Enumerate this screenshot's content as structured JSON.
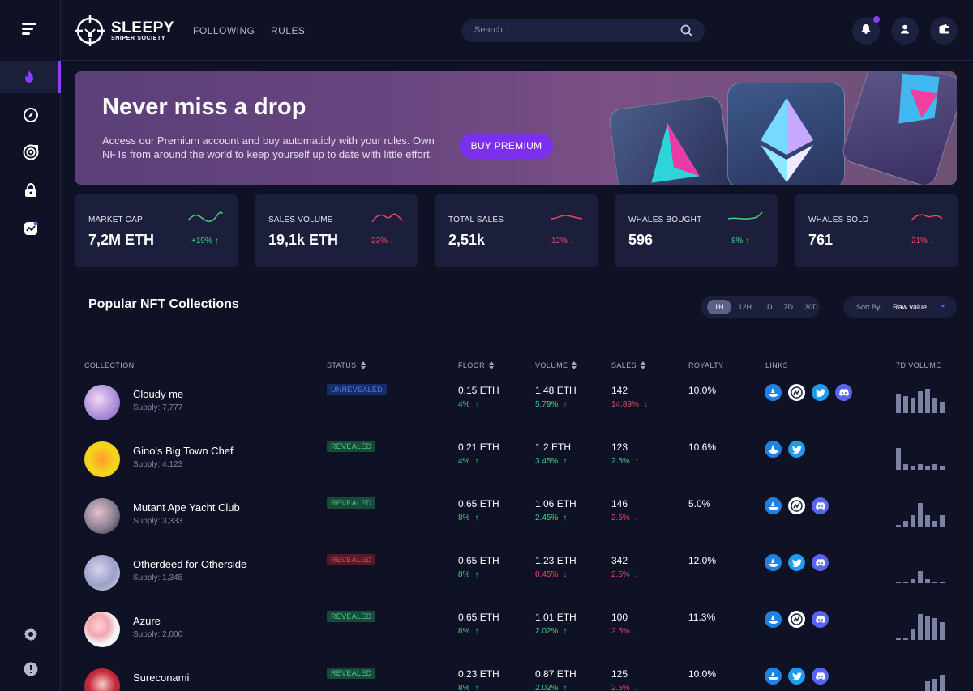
{
  "brand": {
    "title": "SLEEPY",
    "subtitle": "SNIPER SOCIETY"
  },
  "nav": [
    {
      "label": "FOLLOWING"
    },
    {
      "label": "RULES"
    }
  ],
  "search": {
    "placeholder": "Search..."
  },
  "colors": {
    "accent": "#8a3ff7",
    "up": "#3fcf7f",
    "down": "#e8475f",
    "background": "#0f1225",
    "card": "#1b1f3b"
  },
  "banner": {
    "title": "Never miss a drop",
    "text": "Access our Premium account and buy automaticly with your rules. Own NFTs from around the world to keep yourself up to date with little effort.",
    "button": "BUY PREMIUM"
  },
  "stats": [
    {
      "label": "MARKET CAP",
      "value": "7,2M ETH",
      "change": "+19%",
      "direction": "up"
    },
    {
      "label": "SALES VOLUME",
      "value": "19,1k ETH",
      "change": "23%",
      "direction": "down"
    },
    {
      "label": "TOTAL SALES",
      "value": "2,51k",
      "change": "12%",
      "direction": "down"
    },
    {
      "label": "WHALES BOUGHT",
      "value": "596",
      "change": "8%",
      "direction": "up"
    },
    {
      "label": "WHALES SOLD",
      "value": "761",
      "change": "21%",
      "direction": "down"
    }
  ],
  "section": {
    "title": "Popular NFT Collections"
  },
  "periods": [
    {
      "label": "1H",
      "active": true
    },
    {
      "label": "12H"
    },
    {
      "label": "1D"
    },
    {
      "label": "7D"
    },
    {
      "label": "30D"
    }
  ],
  "sort": {
    "label": "Sort By",
    "value": "Raw value"
  },
  "table": {
    "headers": {
      "collection": "COLLECTION",
      "status": "STATUS",
      "floor": "FLOOR",
      "volume": "VOLUME",
      "sales": "SALES",
      "royalty": "ROYALTY",
      "links": "LINKS",
      "volume7d": "7D VOLUME"
    },
    "rows": [
      {
        "name": "Cloudy me",
        "supply": "Supply: 7,777",
        "status": "UNREVEALED",
        "status_kind": "unrevealed",
        "floor": "0.15 ETH",
        "floor_change": "4%",
        "floor_dir": "up",
        "volume": "1.48 ETH",
        "volume_change": "5.79%",
        "volume_dir": "up",
        "sales": "142",
        "sales_change": "14.89%",
        "sales_dir": "down",
        "royalty": "10.0%",
        "links": [
          "opensea-icon",
          "looksrare-icon",
          "twitter-icon",
          "discord-icon"
        ],
        "volume7d": [
          0.72,
          0.62,
          0.56,
          0.78,
          0.88,
          0.56,
          0.4
        ]
      },
      {
        "name": "Gino's Big Town Chef",
        "supply": "Supply: 4,123",
        "status": "REVEALED",
        "status_kind": "revealed",
        "floor": "0.21 ETH",
        "floor_change": "4%",
        "floor_dir": "up",
        "volume": "1.2 ETH",
        "volume_change": "3.45%",
        "volume_dir": "up",
        "sales": "123",
        "sales_change": "2.5%",
        "sales_dir": "up",
        "royalty": "10.6%",
        "links": [
          "opensea-icon",
          "twitter-icon"
        ],
        "volume7d": [
          0.78,
          0.22,
          0.16,
          0.22,
          0.16,
          0.22,
          0.16
        ]
      },
      {
        "name": "Mutant Ape Yacht Club",
        "supply": "Supply: 3,333",
        "status": "REVEALED",
        "status_kind": "revealed",
        "floor": "0.65 ETH",
        "floor_change": "8%",
        "floor_dir": "up",
        "volume": "1.06 ETH",
        "volume_change": "2.45%",
        "volume_dir": "up",
        "sales": "146",
        "sales_change": "2.5%",
        "sales_dir": "down",
        "royalty": "5.0%",
        "links": [
          "opensea-icon",
          "looksrare-icon",
          "discord-icon"
        ],
        "volume7d": [
          0.06,
          0.22,
          0.4,
          0.84,
          0.4,
          0.22,
          0.4
        ]
      },
      {
        "name": "Otherdeed for Otherside",
        "supply": "Supply: 1,345",
        "status": "REVEALED",
        "status_kind": "red",
        "floor": "0.65 ETH",
        "floor_change": "8%",
        "floor_dir": "up",
        "volume": "1.23 ETH",
        "volume_change": "0.45%",
        "volume_dir": "down",
        "sales": "342",
        "sales_change": "2.5%",
        "sales_dir": "down",
        "royalty": "12.0%",
        "links": [
          "opensea-icon",
          "twitter-icon",
          "discord-icon"
        ],
        "volume7d": [
          0.06,
          0.06,
          0.16,
          0.44,
          0.16,
          0.06,
          0.06
        ]
      },
      {
        "name": "Azure",
        "supply": "Supply: 2,000",
        "status": "REVEALED",
        "status_kind": "revealed",
        "floor": "0.65 ETH",
        "floor_change": "8%",
        "floor_dir": "up",
        "volume": "1.01 ETH",
        "volume_change": "2.02%",
        "volume_dir": "up",
        "sales": "100",
        "sales_change": "2.5%",
        "sales_dir": "down",
        "royalty": "11.3%",
        "links": [
          "opensea-icon",
          "looksrare-icon",
          "discord-icon"
        ],
        "volume7d": [
          0.06,
          0.06,
          0.4,
          0.94,
          0.84,
          0.78,
          0.64
        ]
      },
      {
        "name": "Sureconami",
        "supply": "",
        "status": "REVEALED",
        "status_kind": "revealed",
        "floor": "0.23 ETH",
        "floor_change": "8%",
        "floor_dir": "up",
        "volume": "0.87 ETH",
        "volume_change": "2.02%",
        "volume_dir": "up",
        "sales": "125",
        "sales_change": "2.5%",
        "sales_dir": "down",
        "royalty": "10.0%",
        "links": [
          "opensea-icon",
          "twitter-icon",
          "discord-icon"
        ],
        "volume7d": [
          0.06,
          0.06,
          0.06,
          0.22,
          0.56,
          0.64,
          0.78
        ]
      }
    ]
  }
}
